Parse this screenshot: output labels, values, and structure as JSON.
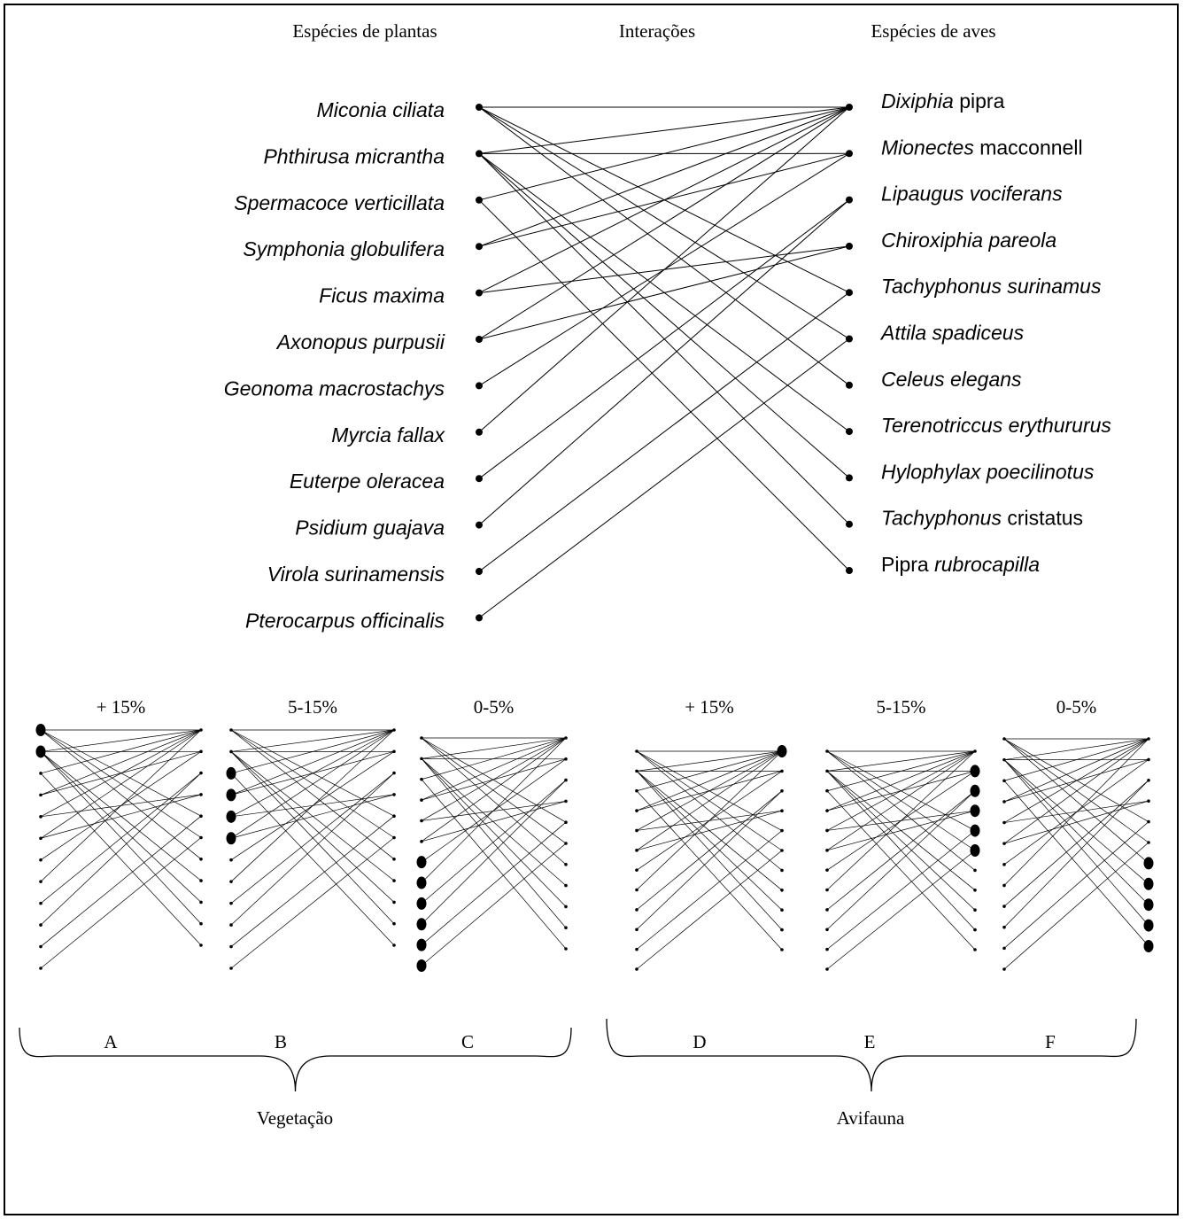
{
  "headers": {
    "plants": "Espécies de plantas",
    "interactions": "Interações",
    "birds": "Espécies de aves"
  },
  "plants": [
    {
      "name": "Miconia ciliata"
    },
    {
      "name": "Phthirusa micrantha"
    },
    {
      "name": "Spermacoce verticillata"
    },
    {
      "name": "Symphonia globulifera"
    },
    {
      "name": "Ficus maxima"
    },
    {
      "name": "Axonopus purpusii"
    },
    {
      "name": "Geonoma macrostachys"
    },
    {
      "name": "Myrcia fallax"
    },
    {
      "name": "Euterpe oleracea"
    },
    {
      "name": "Psidium guajava"
    },
    {
      "name": "Virola surinamensis"
    },
    {
      "name": "Pterocarpus officinalis"
    }
  ],
  "birds": [
    {
      "parts": [
        {
          "t": "Dixiphia",
          "i": true
        },
        {
          "t": " pipra",
          "i": false
        }
      ]
    },
    {
      "parts": [
        {
          "t": "Mionectes",
          "i": true
        },
        {
          "t": " macconnell",
          "i": false
        }
      ]
    },
    {
      "parts": [
        {
          "t": "Lipaugus vociferans",
          "i": true
        }
      ]
    },
    {
      "parts": [
        {
          "t": "Chiroxiphia pareola",
          "i": true
        }
      ]
    },
    {
      "parts": [
        {
          "t": "Tachyphonus surinamus",
          "i": true
        }
      ]
    },
    {
      "parts": [
        {
          "t": "Attila spadiceus",
          "i": true
        }
      ]
    },
    {
      "parts": [
        {
          "t": "Celeus elegans",
          "i": true
        }
      ]
    },
    {
      "parts": [
        {
          "t": "Terenotriccus erythururus",
          "i": true
        }
      ]
    },
    {
      "parts": [
        {
          "t": "Hylophylax  poecilinotus",
          "i": true
        }
      ]
    },
    {
      "parts": [
        {
          "t": "Tachyphonus",
          "i": true
        },
        {
          "t": " cristatus",
          "i": false
        }
      ]
    },
    {
      "parts": [
        {
          "t": "Pipra  ",
          "i": false
        },
        {
          "t": "rubrocapilla",
          "i": true
        }
      ]
    }
  ],
  "interactions": [
    [
      0,
      0
    ],
    [
      0,
      4
    ],
    [
      0,
      5
    ],
    [
      0,
      6
    ],
    [
      1,
      0
    ],
    [
      1,
      1
    ],
    [
      1,
      7
    ],
    [
      1,
      8
    ],
    [
      1,
      9
    ],
    [
      2,
      0
    ],
    [
      2,
      10
    ],
    [
      3,
      0
    ],
    [
      3,
      1
    ],
    [
      4,
      0
    ],
    [
      4,
      3
    ],
    [
      5,
      0
    ],
    [
      5,
      3
    ],
    [
      6,
      1
    ],
    [
      7,
      0
    ],
    [
      8,
      2
    ],
    [
      9,
      2
    ],
    [
      10,
      4
    ],
    [
      11,
      5
    ]
  ],
  "panels": [
    {
      "letter": "A",
      "title": "+ 15%",
      "plant_highlight": [
        0,
        1
      ],
      "bird_highlight": []
    },
    {
      "letter": "B",
      "title": "5-15%",
      "plant_highlight": [
        2,
        3,
        4,
        5
      ],
      "bird_highlight": []
    },
    {
      "letter": "C",
      "title": "0-5%",
      "plant_highlight": [
        6,
        7,
        8,
        9,
        10,
        11
      ],
      "bird_highlight": []
    },
    {
      "letter": "D",
      "title": "+ 15%",
      "plant_highlight": [],
      "bird_highlight": [
        0
      ]
    },
    {
      "letter": "E",
      "title": "5-15%",
      "plant_highlight": [],
      "bird_highlight": [
        1,
        2,
        3,
        4,
        5
      ]
    },
    {
      "letter": "F",
      "title": "0-5%",
      "plant_highlight": [],
      "bird_highlight": [
        6,
        7,
        8,
        9,
        10
      ]
    }
  ],
  "groups": [
    {
      "label": "Vegetação"
    },
    {
      "label": "Avifauna"
    }
  ]
}
